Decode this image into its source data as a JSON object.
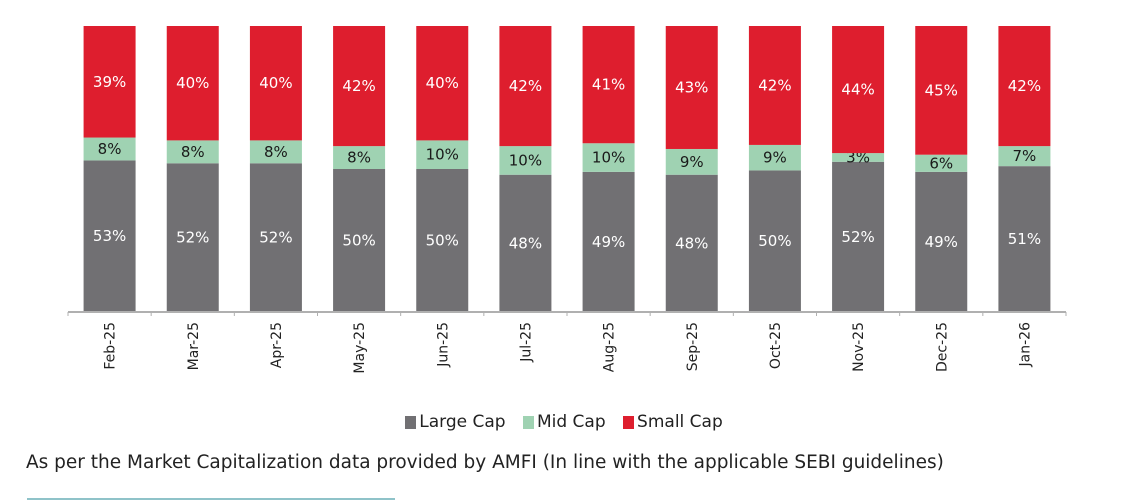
{
  "chart_data": {
    "type": "bar",
    "stacked": true,
    "title": "",
    "xlabel": "",
    "ylabel": "",
    "ylim": [
      0,
      100
    ],
    "grid": false,
    "legend_position": "bottom",
    "categories": [
      "Feb-25",
      "Mar-25",
      "Apr-25",
      "May-25",
      "Jun-25",
      "Jul-25",
      "Aug-25",
      "Sep-25",
      "Oct-25",
      "Nov-25",
      "Dec-25",
      "Jan-26"
    ],
    "series": [
      {
        "name": "Large Cap",
        "color": "#717073",
        "label_color": "#ffffff",
        "values": [
          53,
          52,
          52,
          50,
          50,
          48,
          49,
          48,
          50,
          52,
          49,
          51
        ]
      },
      {
        "name": "Mid Cap",
        "color": "#9fd2b2",
        "label_color": "#1a1a1a",
        "values": [
          8,
          8,
          8,
          8,
          10,
          10,
          10,
          9,
          9,
          3,
          6,
          7
        ]
      },
      {
        "name": "Small Cap",
        "color": "#de1e2e",
        "label_color": "#ffffff",
        "values": [
          39,
          40,
          40,
          42,
          40,
          42,
          41,
          43,
          42,
          44,
          45,
          42
        ]
      }
    ]
  },
  "footnote": "As per the Market Capitalization data provided by AMFI (In line with the applicable SEBI guidelines)"
}
